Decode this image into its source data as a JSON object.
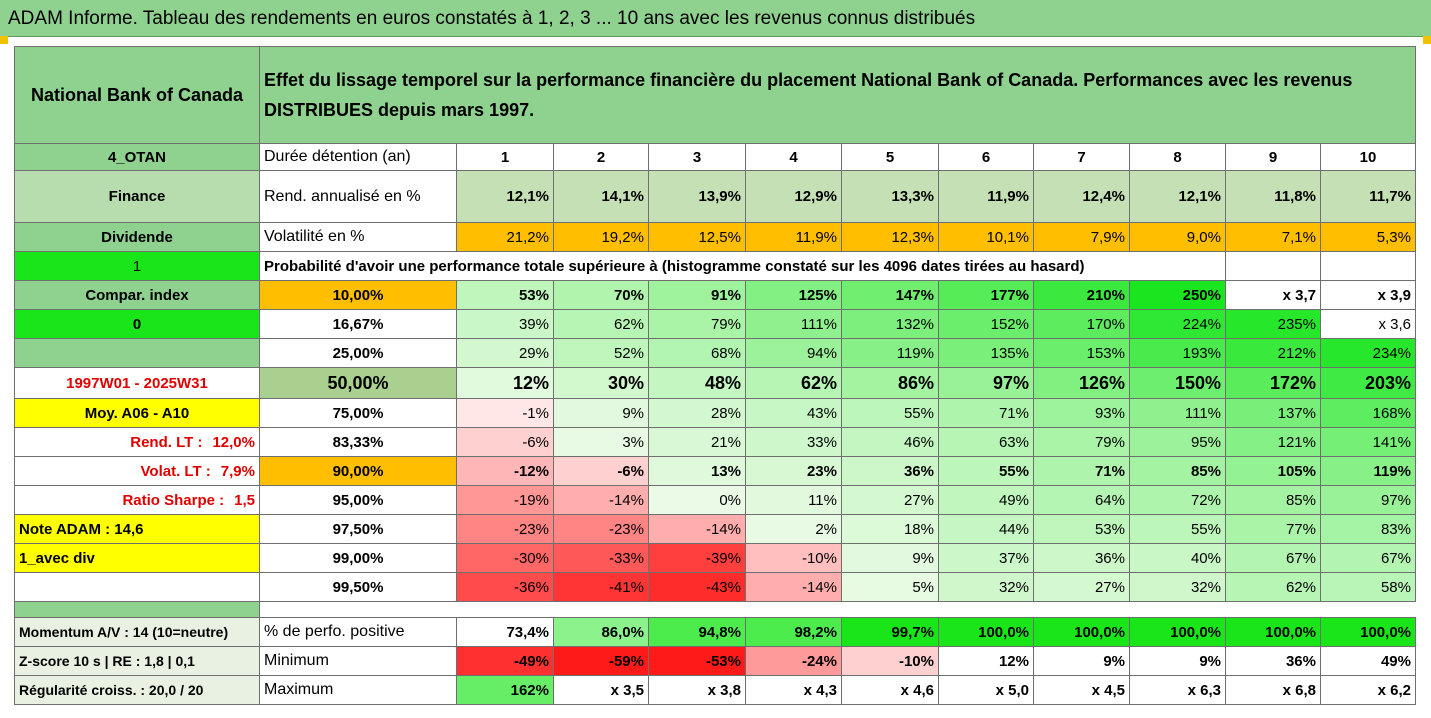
{
  "title": "ADAM Informe. Tableau des rendements en euros constatés à 1, 2, 3 ... 10 ans avec les revenus connus distribués",
  "header": {
    "name": "National Bank of Canada",
    "description": "Effet du lissage temporel sur la performance financière du placement National Bank of Canada. Performances avec les revenus DISTRIBUES depuis mars 1997."
  },
  "left_labels": {
    "code": "4_OTAN",
    "sector": "Finance",
    "dividend": "Dividende",
    "one": "1",
    "compar_index": "Compar. index",
    "zero": "0",
    "period": "1997W01 - 2025W31",
    "moy": "Moy. A06 - A10",
    "rend_lt_label": "Rend. LT :",
    "rend_lt_value": "12,0%",
    "volat_lt_label": "Volat. LT :",
    "volat_lt_value": "7,9%",
    "sharpe_label": "Ratio Sharpe :",
    "sharpe_value": "1,5",
    "note": "Note ADAM : 14,6",
    "avec_div": "1_avec div",
    "momentum": "Momentum A/V : 14 (10=neutre)",
    "zscore": "Z-score 10 s  | RE : 1,8 | 0,1",
    "regularite": "Régularité croiss. : 20,0 / 20"
  },
  "rows": {
    "duree_label": "Durée détention (an)",
    "years": [
      "1",
      "2",
      "3",
      "4",
      "5",
      "6",
      "7",
      "8",
      "9",
      "10"
    ],
    "rend_label": "Rend. annualisé en %",
    "rend": [
      "12,1%",
      "14,1%",
      "13,9%",
      "12,9%",
      "13,3%",
      "11,9%",
      "12,4%",
      "12,1%",
      "11,8%",
      "11,7%"
    ],
    "vol_label": "Volatilité en %",
    "vol": [
      "21,2%",
      "19,2%",
      "12,5%",
      "11,9%",
      "12,3%",
      "10,1%",
      "7,9%",
      "9,0%",
      "7,1%",
      "5,3%"
    ],
    "prob_label": "Probabilité d'avoir une performance totale supérieure à (histogramme constaté sur les 4096 dates tirées au hasard)"
  },
  "quantiles": [
    {
      "q": "10,00%",
      "vals": [
        "53%",
        "70%",
        "91%",
        "125%",
        "147%",
        "177%",
        "210%",
        "250%",
        "x 3,7",
        "x 3,9"
      ]
    },
    {
      "q": "16,67%",
      "vals": [
        "39%",
        "62%",
        "79%",
        "111%",
        "132%",
        "152%",
        "170%",
        "224%",
        "235%",
        "x 3,6"
      ]
    },
    {
      "q": "25,00%",
      "vals": [
        "29%",
        "52%",
        "68%",
        "94%",
        "119%",
        "135%",
        "153%",
        "193%",
        "212%",
        "234%"
      ]
    },
    {
      "q": "50,00%",
      "vals": [
        "12%",
        "30%",
        "48%",
        "62%",
        "86%",
        "97%",
        "126%",
        "150%",
        "172%",
        "203%"
      ]
    },
    {
      "q": "75,00%",
      "vals": [
        "-1%",
        "9%",
        "28%",
        "43%",
        "55%",
        "71%",
        "93%",
        "111%",
        "137%",
        "168%"
      ]
    },
    {
      "q": "83,33%",
      "vals": [
        "-6%",
        "3%",
        "21%",
        "33%",
        "46%",
        "63%",
        "79%",
        "95%",
        "121%",
        "141%"
      ]
    },
    {
      "q": "90,00%",
      "vals": [
        "-12%",
        "-6%",
        "13%",
        "23%",
        "36%",
        "55%",
        "71%",
        "85%",
        "105%",
        "119%"
      ]
    },
    {
      "q": "95,00%",
      "vals": [
        "-19%",
        "-14%",
        "0%",
        "11%",
        "27%",
        "49%",
        "64%",
        "72%",
        "85%",
        "97%"
      ]
    },
    {
      "q": "97,50%",
      "vals": [
        "-23%",
        "-23%",
        "-14%",
        "2%",
        "18%",
        "44%",
        "53%",
        "55%",
        "77%",
        "83%"
      ]
    },
    {
      "q": "99,00%",
      "vals": [
        "-30%",
        "-33%",
        "-39%",
        "-10%",
        "9%",
        "37%",
        "36%",
        "40%",
        "67%",
        "67%"
      ]
    },
    {
      "q": "99,50%",
      "vals": [
        "-36%",
        "-41%",
        "-43%",
        "-14%",
        "5%",
        "32%",
        "27%",
        "32%",
        "62%",
        "58%"
      ]
    }
  ],
  "bottom": {
    "pos_label": "% de perfo. positive",
    "pos": [
      "73,4%",
      "86,0%",
      "94,8%",
      "98,2%",
      "99,7%",
      "100,0%",
      "100,0%",
      "100,0%",
      "100,0%",
      "100,0%"
    ],
    "min_label": "Minimum",
    "min": [
      "-49%",
      "-59%",
      "-53%",
      "-24%",
      "-10%",
      "12%",
      "9%",
      "9%",
      "36%",
      "49%"
    ],
    "max_label": "Maximum",
    "max": [
      "162%",
      "x 3,5",
      "x 3,8",
      "x 4,3",
      "x 4,6",
      "x 5,0",
      "x 4,5",
      "x 6,3",
      "x 6,8",
      "x 6,2"
    ]
  },
  "colors": {
    "header_green": "#8fd18f",
    "lime": "#19e619",
    "orange": "#ffbf00",
    "yellow": "#ffff00",
    "red_text": "#e00000"
  }
}
